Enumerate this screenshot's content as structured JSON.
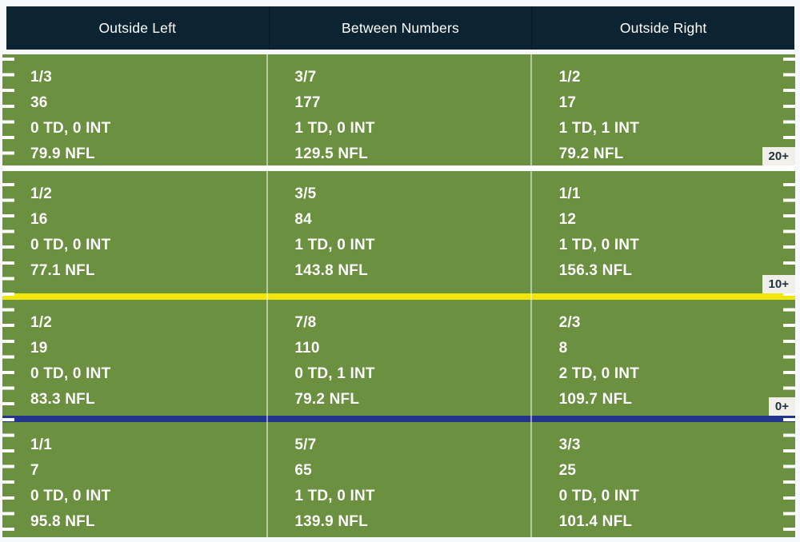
{
  "header": {
    "columns": [
      "Outside Left",
      "Between Numbers",
      "Outside Right"
    ]
  },
  "zones": [
    {
      "badge": "20+",
      "cells": [
        {
          "comp_att": "1/3",
          "yards": "36",
          "td_int": "0 TD, 0 INT",
          "rating": "79.9 NFL"
        },
        {
          "comp_att": "3/7",
          "yards": "177",
          "td_int": "1 TD, 0 INT",
          "rating": "129.5 NFL"
        },
        {
          "comp_att": "1/2",
          "yards": "17",
          "td_int": "1 TD, 1 INT",
          "rating": "79.2 NFL"
        }
      ]
    },
    {
      "badge": "10+",
      "cells": [
        {
          "comp_att": "1/2",
          "yards": "16",
          "td_int": "0 TD, 0 INT",
          "rating": "77.1 NFL"
        },
        {
          "comp_att": "3/5",
          "yards": "84",
          "td_int": "1 TD, 0 INT",
          "rating": "143.8 NFL"
        },
        {
          "comp_att": "1/1",
          "yards": "12",
          "td_int": "1 TD, 0 INT",
          "rating": "156.3 NFL"
        }
      ]
    },
    {
      "badge": "0+",
      "cells": [
        {
          "comp_att": "1/2",
          "yards": "19",
          "td_int": "0 TD, 0 INT",
          "rating": "83.3 NFL"
        },
        {
          "comp_att": "7/8",
          "yards": "110",
          "td_int": "0 TD, 1 INT",
          "rating": "79.2 NFL"
        },
        {
          "comp_att": "2/3",
          "yards": "8",
          "td_int": "2 TD, 0 INT",
          "rating": "109.7 NFL"
        }
      ]
    },
    {
      "badge": "",
      "cells": [
        {
          "comp_att": "1/1",
          "yards": "7",
          "td_int": "0 TD, 0 INT",
          "rating": "95.8 NFL"
        },
        {
          "comp_att": "5/7",
          "yards": "65",
          "td_int": "1 TD, 0 INT",
          "rating": "139.9 NFL"
        },
        {
          "comp_att": "3/3",
          "yards": "25",
          "td_int": "0 TD, 0 INT",
          "rating": "101.4 NFL"
        }
      ]
    }
  ],
  "colors": {
    "field_green": "#6b9140",
    "header_navy": "#0c2431",
    "first_down_yellow": "#f0e60a",
    "line_of_scrimmage_blue": "#23348c",
    "separator_white": "#fdfdfc",
    "badge_bg": "#f0efea",
    "badge_text": "#22303d",
    "cell_text": "#ffffff"
  },
  "chart_data": {
    "type": "heatmap",
    "title": "Passing chart by field zone",
    "columns": [
      "Outside Left",
      "Between Numbers",
      "Outside Right"
    ],
    "rows": [
      "20+",
      "10+",
      "0+",
      ""
    ],
    "legend_position": "right-edge badges",
    "cells": [
      [
        {
          "completions": 1,
          "attempts": 3,
          "yards": 36,
          "td": 0,
          "int": 0,
          "nfl_rating": 79.9
        },
        {
          "completions": 3,
          "attempts": 7,
          "yards": 177,
          "td": 1,
          "int": 0,
          "nfl_rating": 129.5
        },
        {
          "completions": 1,
          "attempts": 2,
          "yards": 17,
          "td": 1,
          "int": 1,
          "nfl_rating": 79.2
        }
      ],
      [
        {
          "completions": 1,
          "attempts": 2,
          "yards": 16,
          "td": 0,
          "int": 0,
          "nfl_rating": 77.1
        },
        {
          "completions": 3,
          "attempts": 5,
          "yards": 84,
          "td": 1,
          "int": 0,
          "nfl_rating": 143.8
        },
        {
          "completions": 1,
          "attempts": 1,
          "yards": 12,
          "td": 1,
          "int": 0,
          "nfl_rating": 156.3
        }
      ],
      [
        {
          "completions": 1,
          "attempts": 2,
          "yards": 19,
          "td": 0,
          "int": 0,
          "nfl_rating": 83.3
        },
        {
          "completions": 7,
          "attempts": 8,
          "yards": 110,
          "td": 0,
          "int": 1,
          "nfl_rating": 79.2
        },
        {
          "completions": 2,
          "attempts": 3,
          "yards": 8,
          "td": 2,
          "int": 0,
          "nfl_rating": 109.7
        }
      ],
      [
        {
          "completions": 1,
          "attempts": 1,
          "yards": 7,
          "td": 0,
          "int": 0,
          "nfl_rating": 95.8
        },
        {
          "completions": 5,
          "attempts": 7,
          "yards": 65,
          "td": 1,
          "int": 0,
          "nfl_rating": 139.9
        },
        {
          "completions": 3,
          "attempts": 3,
          "yards": 25,
          "td": 0,
          "int": 0,
          "nfl_rating": 101.4
        }
      ]
    ]
  }
}
